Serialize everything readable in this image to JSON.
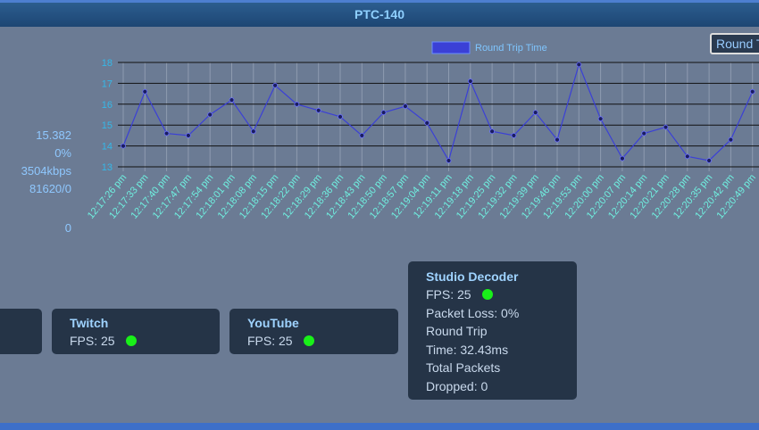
{
  "header": {
    "title": "PTC-140"
  },
  "button": {
    "label": "Round T"
  },
  "stats": [
    "15.382",
    "0%",
    "3504kbps",
    "81620/0",
    "0"
  ],
  "chart_data": {
    "type": "line",
    "categories": [
      "12:17:26 pm",
      "12:17:33 pm",
      "12:17:40 pm",
      "12:17:47 pm",
      "12:17:54 pm",
      "12:18:01 pm",
      "12:18:08 pm",
      "12:18:15 pm",
      "12:18:22 pm",
      "12:18:29 pm",
      "12:18:36 pm",
      "12:18:43 pm",
      "12:18:50 pm",
      "12:18:57 pm",
      "12:19:04 pm",
      "12:19:11 pm",
      "12:19:18 pm",
      "12:19:25 pm",
      "12:19:32 pm",
      "12:19:39 pm",
      "12:19:46 pm",
      "12:19:53 pm",
      "12:20:00 pm",
      "12:20:07 pm",
      "12:20:14 pm",
      "12:20:21 pm",
      "12:20:28 pm",
      "12:20:35 pm",
      "12:20:42 pm",
      "12:20:49 pm"
    ],
    "series": [
      {
        "name": "Round Trip Time",
        "color": "#3b40d6",
        "values": [
          14.0,
          16.6,
          14.6,
          14.5,
          15.5,
          16.2,
          14.7,
          16.9,
          16.0,
          15.7,
          15.4,
          14.5,
          15.6,
          15.9,
          15.1,
          13.3,
          17.1,
          14.7,
          14.5,
          15.6,
          14.3,
          17.9,
          15.3,
          13.4,
          14.6,
          14.9,
          13.5,
          13.3,
          14.3,
          16.6
        ]
      }
    ],
    "ylim": [
      13,
      18
    ],
    "yticks": [
      13,
      14,
      15,
      16,
      17,
      18
    ],
    "grid": true
  },
  "cards": [
    {
      "title": "Twitch",
      "lines": [
        "FPS: 25"
      ]
    },
    {
      "title": "YouTube",
      "lines": [
        "FPS: 25"
      ]
    },
    {
      "title": "Studio Decoder",
      "lines": [
        "FPS: 25",
        "Packet Loss: 0%",
        "Round Trip",
        "Time: 32.43ms",
        "Total Packets",
        "Dropped: 0"
      ]
    }
  ]
}
